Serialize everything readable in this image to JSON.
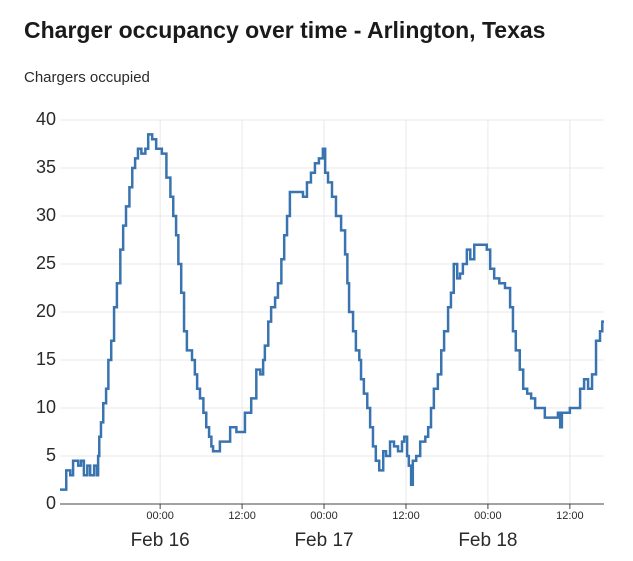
{
  "chart_data": {
    "type": "line",
    "step": true,
    "title": "Charger occupancy over time - Arlington, Texas",
    "ylabel": "Chargers occupied",
    "series": [
      {
        "name": "Chargers occupied",
        "color": "#3a74b0",
        "x": [
          "Feb 15 09:20",
          "Feb 15 10:15",
          "Feb 15 10:50",
          "Feb 15 11:15",
          "Feb 15 12:00",
          "Feb 15 12:25",
          "Feb 15 12:50",
          "Feb 15 13:20",
          "Feb 15 13:45",
          "Feb 15 14:20",
          "Feb 15 14:45",
          "Feb 15 14:55",
          "Feb 15 15:05",
          "Feb 15 15:20",
          "Feb 15 15:40",
          "Feb 15 16:05",
          "Feb 15 16:25",
          "Feb 15 16:50",
          "Feb 15 17:15",
          "Feb 15 17:40",
          "Feb 15 18:10",
          "Feb 15 18:35",
          "Feb 15 19:00",
          "Feb 15 19:30",
          "Feb 15 19:55",
          "Feb 15 20:20",
          "Feb 15 20:45",
          "Feb 15 21:15",
          "Feb 15 21:50",
          "Feb 15 22:15",
          "Feb 15 22:50",
          "Feb 15 23:25",
          "Feb 16 00:15",
          "Feb 16 00:55",
          "Feb 16 01:30",
          "Feb 16 01:55",
          "Feb 16 02:20",
          "Feb 16 02:40",
          "Feb 16 03:05",
          "Feb 16 03:30",
          "Feb 16 03:55",
          "Feb 16 04:40",
          "Feb 16 05:05",
          "Feb 16 05:25",
          "Feb 16 05:50",
          "Feb 16 06:20",
          "Feb 16 06:45",
          "Feb 16 07:10",
          "Feb 16 07:30",
          "Feb 16 07:45",
          "Feb 16 08:45",
          "Feb 16 10:15",
          "Feb 16 11:10",
          "Feb 16 12:25",
          "Feb 16 13:20",
          "Feb 16 14:05",
          "Feb 16 14:40",
          "Feb 16 15:05",
          "Feb 16 15:20",
          "Feb 16 15:50",
          "Feb 16 16:15",
          "Feb 16 16:50",
          "Feb 16 17:15",
          "Feb 16 17:45",
          "Feb 16 18:10",
          "Feb 16 18:35",
          "Feb 16 19:00",
          "Feb 16 20:55",
          "Feb 16 21:30",
          "Feb 16 22:05",
          "Feb 16 22:40",
          "Feb 16 23:15",
          "Feb 16 23:50",
          "Feb 17 00:10",
          "Feb 17 00:35",
          "Feb 17 01:10",
          "Feb 17 01:45",
          "Feb 17 02:30",
          "Feb 17 03:05",
          "Feb 17 03:25",
          "Feb 17 03:40",
          "Feb 17 04:15",
          "Feb 17 04:40",
          "Feb 17 05:10",
          "Feb 17 05:25",
          "Feb 17 05:50",
          "Feb 17 06:20",
          "Feb 17 06:45",
          "Feb 17 07:10",
          "Feb 17 07:35",
          "Feb 17 08:05",
          "Feb 17 08:40",
          "Feb 17 09:05",
          "Feb 17 09:40",
          "Feb 17 10:15",
          "Feb 17 10:50",
          "Feb 17 11:25",
          "Feb 17 11:45",
          "Feb 17 12:10",
          "Feb 17 12:25",
          "Feb 17 12:45",
          "Feb 17 13:00",
          "Feb 17 13:30",
          "Feb 17 14:05",
          "Feb 17 14:50",
          "Feb 17 15:15",
          "Feb 17 15:40",
          "Feb 17 16:05",
          "Feb 17 16:40",
          "Feb 17 17:10",
          "Feb 17 17:35",
          "Feb 17 18:10",
          "Feb 17 18:35",
          "Feb 17 19:00",
          "Feb 17 19:30",
          "Feb 17 19:55",
          "Feb 17 20:20",
          "Feb 17 20:55",
          "Feb 17 21:25",
          "Feb 17 22:00",
          "Feb 17 23:50",
          "Feb 18 00:20",
          "Feb 18 00:55",
          "Feb 18 01:40",
          "Feb 18 02:30",
          "Feb 18 03:15",
          "Feb 18 03:40",
          "Feb 18 04:05",
          "Feb 18 04:40",
          "Feb 18 05:10",
          "Feb 18 05:45",
          "Feb 18 06:20",
          "Feb 18 06:55",
          "Feb 18 08:20",
          "Feb 18 10:15",
          "Feb 18 10:35",
          "Feb 18 10:50",
          "Feb 18 12:00",
          "Feb 18 13:30",
          "Feb 18 14:05",
          "Feb 18 14:40",
          "Feb 18 15:15",
          "Feb 18 15:50",
          "Feb 18 16:25",
          "Feb 18 16:45"
        ],
        "values": [
          1.5,
          3.5,
          3,
          4.5,
          4,
          4.5,
          3,
          4,
          3,
          4,
          3,
          5,
          7,
          8.5,
          10.5,
          12,
          15,
          17,
          20.5,
          23,
          26.5,
          29,
          31,
          33,
          35,
          36,
          37,
          36.5,
          37,
          38.5,
          38,
          37,
          36.5,
          34,
          32,
          30,
          28,
          25,
          22,
          18,
          16,
          15,
          13.5,
          12,
          11,
          9.5,
          8,
          7,
          6,
          5.5,
          6.5,
          8,
          7.5,
          9.5,
          11,
          14,
          13.5,
          15,
          16.5,
          19,
          20.5,
          21.5,
          23,
          25.5,
          28,
          30,
          32.5,
          32,
          33.5,
          34.5,
          35.5,
          36,
          37,
          34.5,
          33.5,
          32,
          30,
          28.5,
          26,
          23,
          20,
          18,
          16,
          15,
          13,
          11.5,
          10,
          8,
          6,
          4.5,
          3.5,
          5.5,
          5,
          6.5,
          6,
          5.5,
          6.5,
          7,
          5,
          4,
          2,
          4.5,
          5,
          6.5,
          7,
          8,
          10,
          12,
          13.5,
          16,
          18,
          20.5,
          22,
          25,
          23.5,
          24,
          25,
          26.5,
          25.5,
          27,
          26.5,
          24.5,
          23.5,
          23,
          22.5,
          20.5,
          18,
          16,
          14,
          12,
          11.5,
          11,
          10,
          9,
          9.5,
          8,
          9.5,
          10,
          12,
          13,
          12,
          13.5,
          17,
          18,
          19
        ]
      }
    ],
    "xlim": [
      "Feb 15 09:20",
      "Feb 18 17:00"
    ],
    "xticks": [
      {
        "value": "Feb 16 00:00",
        "label": "00:00",
        "date": "Feb 16"
      },
      {
        "value": "Feb 16 12:00",
        "label": "12:00"
      },
      {
        "value": "Feb 17 00:00",
        "label": "00:00",
        "date": "Feb 17"
      },
      {
        "value": "Feb 17 12:00",
        "label": "12:00"
      },
      {
        "value": "Feb 18 00:00",
        "label": "00:00",
        "date": "Feb 18"
      },
      {
        "value": "Feb 18 12:00",
        "label": "12:00"
      }
    ],
    "ylim": [
      0,
      40
    ],
    "yticks": [
      0,
      5,
      10,
      15,
      20,
      25,
      30,
      35,
      40
    ],
    "grid": true
  }
}
